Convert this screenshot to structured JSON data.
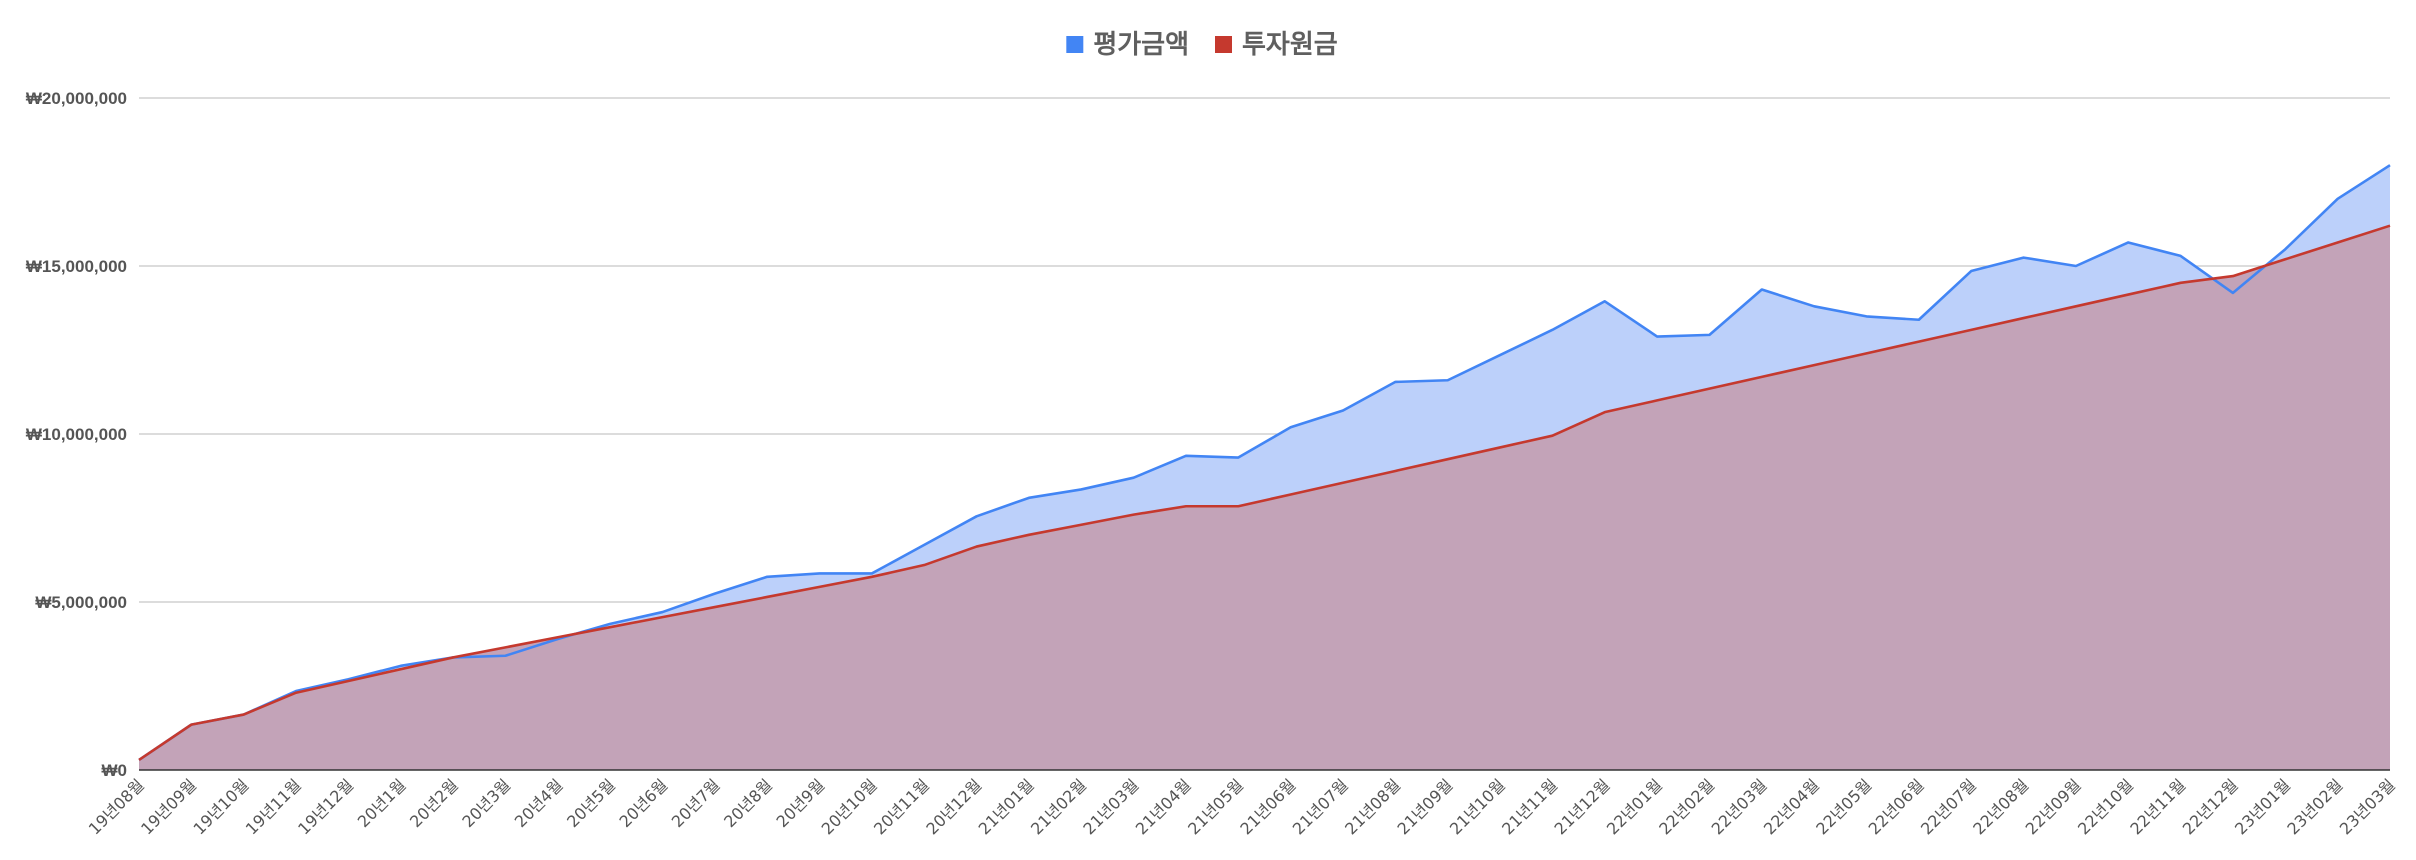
{
  "chart_data": {
    "type": "area",
    "title": "",
    "xlabel": "",
    "ylabel": "",
    "legend_position": "top",
    "grid": true,
    "ylim": [
      0,
      20000000
    ],
    "y_ticks": [
      0,
      5000000,
      10000000,
      15000000,
      20000000
    ],
    "y_tick_labels": [
      "₩0",
      "₩5,000,000",
      "₩10,000,000",
      "₩15,000,000",
      "₩20,000,000"
    ],
    "categories": [
      "19년08월",
      "19년09월",
      "19년10월",
      "19년11월",
      "19년12월",
      "20년1월",
      "20년2월",
      "20년3월",
      "20년4월",
      "20년5월",
      "20년6월",
      "20년7월",
      "20년8월",
      "20년9월",
      "20년10월",
      "20년11월",
      "20년12월",
      "21년01월",
      "21년02월",
      "21년03월",
      "21년04월",
      "21년05월",
      "21년06월",
      "21년07월",
      "21년08월",
      "21년09월",
      "21년10월",
      "21년11월",
      "21년12월",
      "22년01월",
      "22년02월",
      "22년03월",
      "22년04월",
      "22년05월",
      "22년06월",
      "22년07월",
      "22년08월",
      "22년09월",
      "22년10월",
      "22년11월",
      "22년12월",
      "23년01월",
      "23년02월",
      "23년03월"
    ],
    "series": [
      {
        "name": "평가금액",
        "color": "#4285f4",
        "fill": "#bcd0fa",
        "values": [
          300000,
          1350000,
          1650000,
          2350000,
          2700000,
          3100000,
          3350000,
          3400000,
          3900000,
          4350000,
          4700000,
          5250000,
          5750000,
          5850000,
          5850000,
          6700000,
          7550000,
          8100000,
          8350000,
          8700000,
          9350000,
          9300000,
          10200000,
          10700000,
          11550000,
          11600000,
          12350000,
          13100000,
          13950000,
          12900000,
          12950000,
          14300000,
          13800000,
          13500000,
          13400000,
          14850000,
          15250000,
          15000000,
          15700000,
          15300000,
          14200000,
          15500000,
          17000000,
          18000000
        ]
      },
      {
        "name": "투자원금",
        "color": "#c5392e",
        "fill": "#c3a3b8",
        "values": [
          300000,
          1350000,
          1650000,
          2300000,
          2650000,
          3000000,
          3350000,
          3650000,
          3950000,
          4250000,
          4550000,
          4850000,
          5150000,
          5450000,
          5750000,
          6100000,
          6650000,
          7000000,
          7300000,
          7600000,
          7850000,
          7850000,
          8200000,
          8550000,
          8900000,
          9250000,
          9600000,
          9950000,
          10650000,
          11000000,
          11350000,
          11700000,
          12050000,
          12400000,
          12750000,
          13100000,
          13450000,
          13800000,
          14150000,
          14500000,
          14700000,
          15200000,
          15700000,
          16200000
        ]
      }
    ]
  }
}
